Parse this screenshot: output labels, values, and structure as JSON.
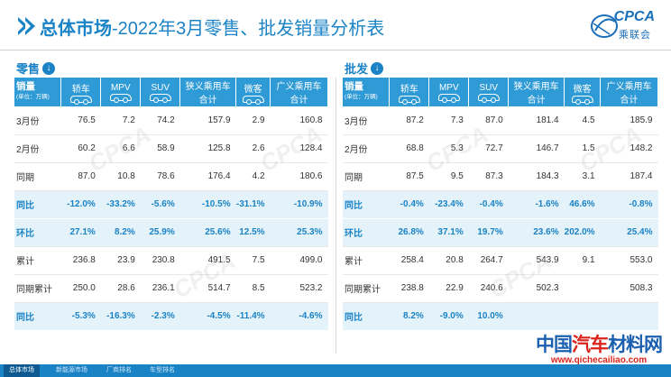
{
  "header": {
    "title_bold": "总体市场",
    "title_rest": "-2022年3月零售、批发销量分析表",
    "logo_text": "CPCA",
    "logo_sub": "乘联会"
  },
  "watermark": "CPCA",
  "retail": {
    "heading": "零售",
    "arrow_icon": "down-arrow-icon",
    "corner_label": "销量",
    "corner_unit": "(单位：万辆)",
    "columns": [
      "轿车",
      "MPV",
      "SUV",
      "狭义乘用车合计",
      "微客",
      "广义乘用车合计"
    ],
    "rows": [
      {
        "label": "3月份",
        "values": [
          "76.5",
          "7.2",
          "74.2",
          "157.9",
          "2.9",
          "160.8"
        ]
      },
      {
        "label": "2月份",
        "values": [
          "60.2",
          "6.6",
          "58.9",
          "125.8",
          "2.6",
          "128.4"
        ]
      },
      {
        "label": "同期",
        "values": [
          "87.0",
          "10.8",
          "78.6",
          "176.4",
          "4.2",
          "180.6"
        ]
      },
      {
        "label": "同比",
        "values": [
          "-12.0%",
          "-33.2%",
          "-5.6%",
          "-10.5%",
          "-31.1%",
          "-10.9%"
        ]
      },
      {
        "label": "环比",
        "values": [
          "27.1%",
          "8.2%",
          "25.9%",
          "25.6%",
          "12.5%",
          "25.3%"
        ]
      },
      {
        "label": "累计",
        "values": [
          "236.8",
          "23.9",
          "230.8",
          "491.5",
          "7.5",
          "499.0"
        ]
      },
      {
        "label": "同期累计",
        "values": [
          "250.0",
          "28.6",
          "236.1",
          "514.7",
          "8.5",
          "523.2"
        ]
      },
      {
        "label": "同比",
        "values": [
          "-5.3%",
          "-16.3%",
          "-2.3%",
          "-4.5%",
          "-11.4%",
          "-4.6%"
        ]
      }
    ]
  },
  "wholesale": {
    "heading": "批发",
    "arrow_icon": "down-arrow-icon",
    "corner_label": "销量",
    "corner_unit": "(单位：万辆)",
    "columns": [
      "轿车",
      "MPV",
      "SUV",
      "狭义乘用车合计",
      "微客",
      "广义乘用车合计"
    ],
    "rows": [
      {
        "label": "3月份",
        "values": [
          "87.2",
          "7.3",
          "87.0",
          "181.4",
          "4.5",
          "185.9"
        ]
      },
      {
        "label": "2月份",
        "values": [
          "68.8",
          "5.3",
          "72.7",
          "146.7",
          "1.5",
          "148.2"
        ]
      },
      {
        "label": "同期",
        "values": [
          "87.5",
          "9.5",
          "87.3",
          "184.3",
          "3.1",
          "187.4"
        ]
      },
      {
        "label": "同比",
        "values": [
          "-0.4%",
          "-23.4%",
          "-0.4%",
          "-1.6%",
          "46.6%",
          "-0.8%"
        ]
      },
      {
        "label": "环比",
        "values": [
          "26.8%",
          "37.1%",
          "19.7%",
          "23.6%",
          "202.0%",
          "25.4%"
        ]
      },
      {
        "label": "累计",
        "values": [
          "258.4",
          "20.8",
          "264.7",
          "543.9",
          "9.1",
          "553.0"
        ]
      },
      {
        "label": "同期累计",
        "values": [
          "238.8",
          "22.9",
          "240.6",
          "502.3",
          "",
          "508.3"
        ]
      },
      {
        "label": "同比",
        "values": [
          "8.2%",
          "-9.0%",
          "10.0%",
          "",
          "",
          ""
        ]
      }
    ]
  },
  "footer": {
    "tabs": [
      "总体市场",
      "新能源市场",
      "厂商排名",
      "车型排名"
    ]
  },
  "brand_watermark": {
    "name_part1": "中国",
    "name_part2": "汽车",
    "name_part3": "材料网",
    "url": "www.qichecailiao.com"
  },
  "colors": {
    "accent": "#1a83c6",
    "header_bg": "#2e9ad6",
    "highlight_row": "#e4f2fa",
    "brand_red": "#d9241b"
  }
}
